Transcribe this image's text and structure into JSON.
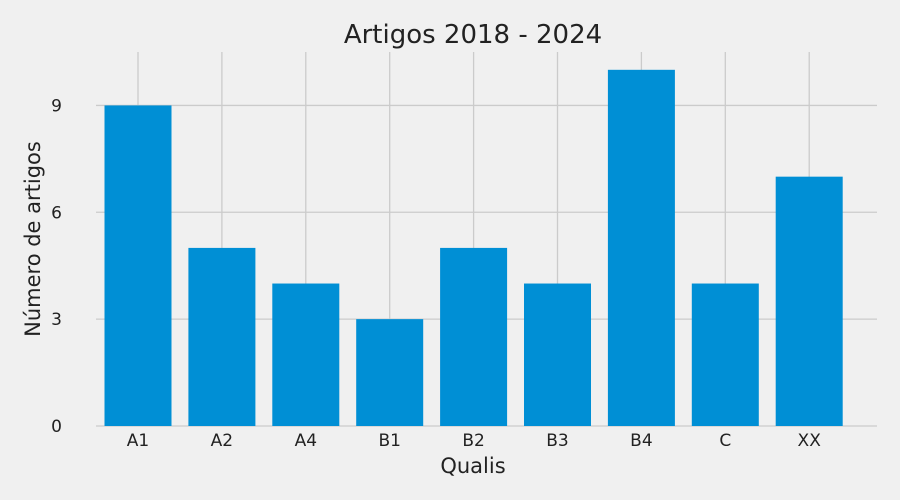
{
  "chart_data": {
    "type": "bar",
    "title": "Artigos  2018 - 2024",
    "xlabel": "Qualis",
    "ylabel": "Número de artigos",
    "categories": [
      "A1",
      "A2",
      "A4",
      "B1",
      "B2",
      "B3",
      "B4",
      "C",
      "XX"
    ],
    "values": [
      9,
      5,
      4,
      3,
      5,
      4,
      10,
      4,
      7
    ],
    "ylim": [
      0,
      10.5
    ],
    "yticks": [
      0,
      3,
      6,
      9
    ],
    "grid": true,
    "bar_color": "#008fd5",
    "background": "#f0f0f0"
  }
}
